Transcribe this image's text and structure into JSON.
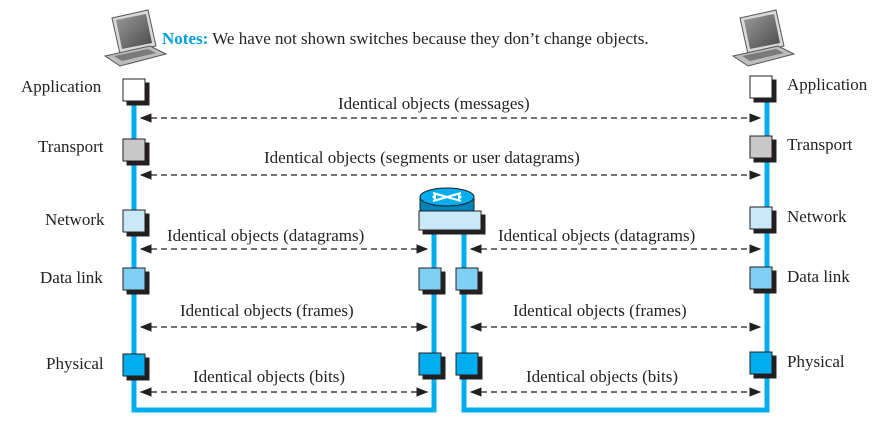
{
  "notes": {
    "label": "Notes:",
    "text": "We have not shown switches because they don’t change objects."
  },
  "layers": {
    "application": "Application",
    "transport": "Transport",
    "network": "Network",
    "datalink": "Data link",
    "physical": "Physical"
  },
  "objects": {
    "messages": "Identical objects (messages)",
    "segments": "Identical objects (segments or user datagrams)",
    "datagrams_left": "Identical objects (datagrams)",
    "datagrams_right": "Identical objects (datagrams)",
    "frames_left": "Identical objects (frames)",
    "frames_right": "Identical objects (frames)",
    "bits_left": "Identical objects (bits)",
    "bits_right": "Identical objects (bits)"
  },
  "colors": {
    "path": "#00aeef",
    "application_box": "#ffffff",
    "transport_box": "#c8c8c8",
    "network_box": "#c9e9f9",
    "datalink_box": "#7fd0f4",
    "physical_box": "#00aeef",
    "router_top": "#00aeef"
  },
  "icons": [
    "laptop-icon",
    "router-icon"
  ]
}
